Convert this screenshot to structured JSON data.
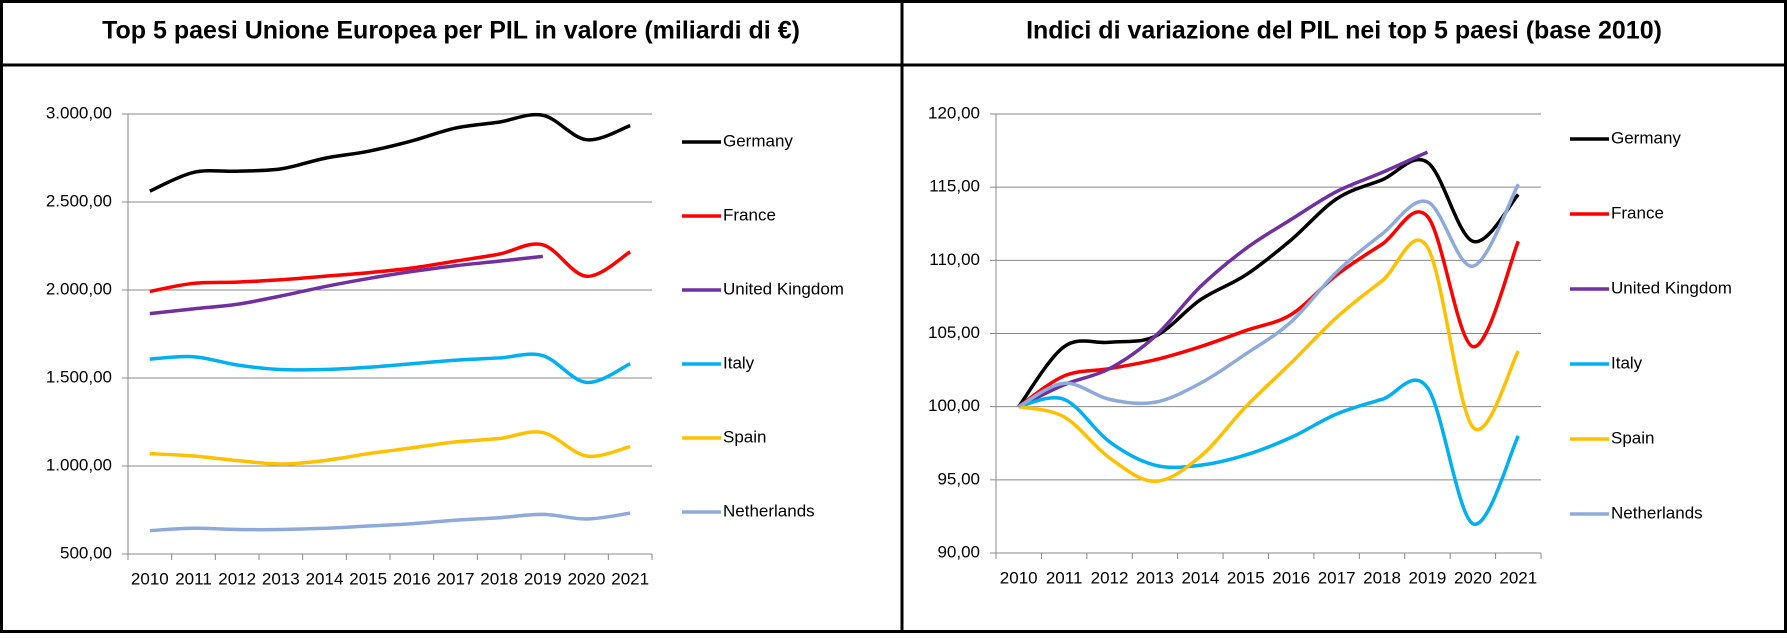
{
  "chart_data": [
    {
      "type": "line",
      "title": "Top 5 paesi Unione Europea per PIL in valore (miliardi di €)",
      "categories": [
        "2010",
        "2011",
        "2012",
        "2013",
        "2014",
        "2015",
        "2016",
        "2017",
        "2018",
        "2019",
        "2020",
        "2021"
      ],
      "series": [
        {
          "name": "Germany",
          "color": "#000000",
          "values": [
            2562,
            2668,
            2675,
            2688,
            2748,
            2788,
            2847,
            2920,
            2954,
            2993,
            2854,
            2934
          ]
        },
        {
          "name": "France",
          "color": "#ff0000",
          "values": [
            1992,
            2038,
            2045,
            2058,
            2078,
            2098,
            2125,
            2164,
            2204,
            2257,
            2078,
            2217
          ]
        },
        {
          "name": "United Kingdom",
          "color": "#7030a0",
          "values": [
            1866,
            1893,
            1919,
            1966,
            2019,
            2065,
            2105,
            2138,
            2164,
            2191,
            null,
            null
          ]
        },
        {
          "name": "Italy",
          "color": "#00b0f0",
          "values": [
            1607,
            1621,
            1574,
            1548,
            1548,
            1561,
            1581,
            1601,
            1614,
            1627,
            1475,
            1581
          ]
        },
        {
          "name": "Spain",
          "color": "#ffc000",
          "values": [
            1070,
            1057,
            1031,
            1011,
            1031,
            1070,
            1103,
            1137,
            1156,
            1190,
            1057,
            1110
          ]
        },
        {
          "name": "Netherlands",
          "color": "#8eaadb",
          "values": [
            633,
            646,
            639,
            639,
            646,
            659,
            672,
            692,
            706,
            725,
            699,
            732
          ]
        }
      ],
      "ylim": [
        500,
        3000
      ],
      "yticks": [
        {
          "value": 500,
          "label": "500,00"
        },
        {
          "value": 1000,
          "label": "1.000,00"
        },
        {
          "value": 1500,
          "label": "1.500,00"
        },
        {
          "value": 2000,
          "label": "2.000,00"
        },
        {
          "value": 2500,
          "label": "2.500,00"
        },
        {
          "value": 3000,
          "label": "3.000,00"
        }
      ],
      "grid": true,
      "legend": "right"
    },
    {
      "type": "line",
      "title": "Indici di variazione del PIL nei top 5 paesi (base 2010)",
      "categories": [
        "2010",
        "2011",
        "2012",
        "2013",
        "2014",
        "2015",
        "2016",
        "2017",
        "2018",
        "2019",
        "2020",
        "2021"
      ],
      "series": [
        {
          "name": "Germany",
          "color": "#000000",
          "values": [
            100,
            104.1,
            104.4,
            104.8,
            107.3,
            109,
            111.4,
            114.2,
            115.5,
            116.7,
            111.3,
            114.5
          ]
        },
        {
          "name": "France",
          "color": "#ff0000",
          "values": [
            100,
            102.1,
            102.6,
            103.2,
            104.1,
            105.2,
            106.3,
            109.0,
            111.1,
            113.0,
            104.1,
            111.3
          ]
        },
        {
          "name": "United Kingdom",
          "color": "#7030a0",
          "values": [
            100,
            101.5,
            102.6,
            104.8,
            108.2,
            110.8,
            112.8,
            114.7,
            116.0,
            117.4,
            null,
            null
          ]
        },
        {
          "name": "Italy",
          "color": "#00b0f0",
          "values": [
            100,
            100.5,
            97.6,
            96.0,
            96.0,
            96.7,
            97.9,
            99.5,
            100.5,
            101.3,
            92.0,
            98.0
          ]
        },
        {
          "name": "Spain",
          "color": "#ffc000",
          "values": [
            100,
            99.3,
            96.5,
            94.9,
            96.6,
            100.0,
            103.0,
            106.1,
            108.6,
            110.9,
            98.6,
            103.8
          ]
        },
        {
          "name": "Netherlands",
          "color": "#8eaadb",
          "values": [
            100,
            101.6,
            100.5,
            100.3,
            101.6,
            103.6,
            105.8,
            109.2,
            111.8,
            114.0,
            109.6,
            115.2
          ]
        }
      ],
      "ylim": [
        90,
        120
      ],
      "yticks": [
        {
          "value": 90,
          "label": "90,00"
        },
        {
          "value": 95,
          "label": "95,00"
        },
        {
          "value": 100,
          "label": "100,00"
        },
        {
          "value": 105,
          "label": "105,00"
        },
        {
          "value": 110,
          "label": "110,00"
        },
        {
          "value": 115,
          "label": "115,00"
        },
        {
          "value": 120,
          "label": "120,00"
        }
      ],
      "grid": true,
      "legend": "right"
    }
  ]
}
